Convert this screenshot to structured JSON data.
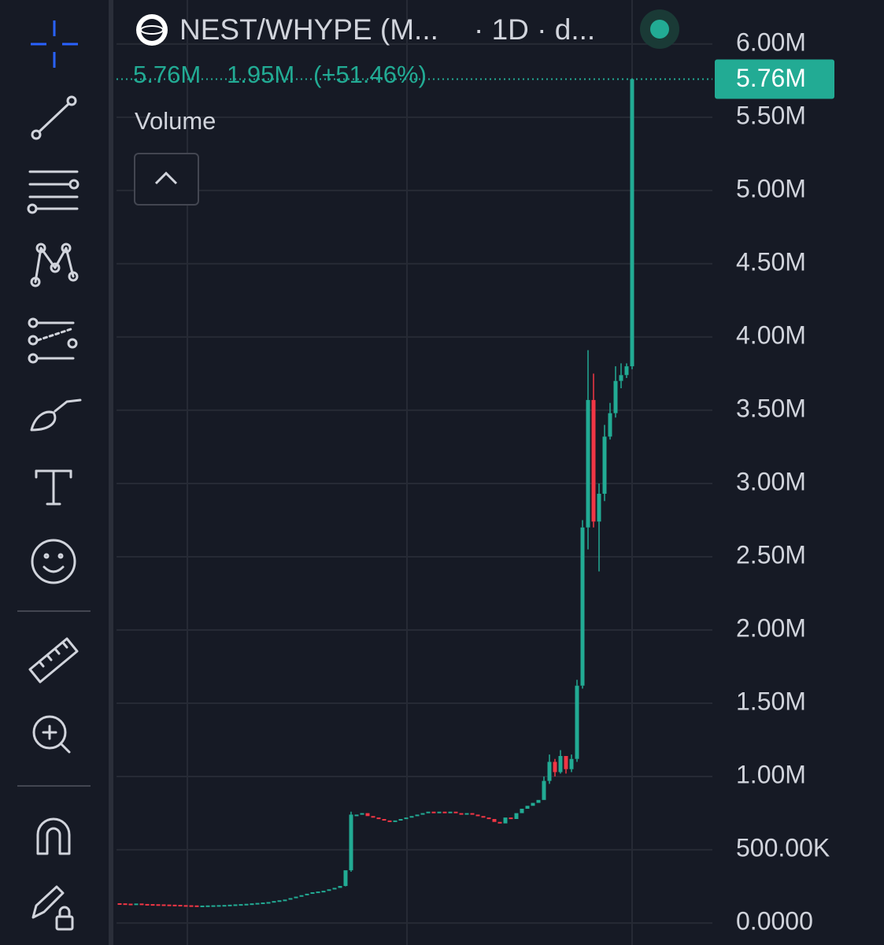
{
  "chart_data": {
    "type": "candlestick",
    "title": "NEST/WHYPE (M...",
    "interval_text": "· 1D · d...",
    "legend": [
      "5.76M",
      "1.95M",
      "(+51.46%)"
    ],
    "indicator_label": "Volume",
    "last_price_label": "5.76M",
    "last_price": 5.76,
    "up_color": "#22ab94",
    "down_color": "#f23645",
    "grid": true,
    "ylim": [
      -0.15,
      6.3
    ],
    "yticks": [
      {
        "value": 6,
        "label": "6.00M"
      },
      {
        "value": 5.5,
        "label": "5.50M"
      },
      {
        "value": 5,
        "label": "5.00M"
      },
      {
        "value": 4.5,
        "label": "4.50M"
      },
      {
        "value": 4,
        "label": "4.00M"
      },
      {
        "value": 3.5,
        "label": "3.50M"
      },
      {
        "value": 3,
        "label": "3.00M"
      },
      {
        "value": 2.5,
        "label": "2.50M"
      },
      {
        "value": 2,
        "label": "2.00M"
      },
      {
        "value": 1.5,
        "label": "1.50M"
      },
      {
        "value": 1,
        "label": "1.00M"
      },
      {
        "value": 0.5,
        "label": "500.00K"
      },
      {
        "value": 0,
        "label": "0.0000"
      }
    ],
    "open": [
      0.135,
      0.134,
      0.132,
      0.131,
      0.133,
      0.13,
      0.129,
      0.128,
      0.127,
      0.126,
      0.125,
      0.124,
      0.122,
      0.121,
      0.12,
      0.119,
      0.119,
      0.12,
      0.121,
      0.122,
      0.123,
      0.125,
      0.127,
      0.129,
      0.131,
      0.134,
      0.137,
      0.14,
      0.143,
      0.15,
      0.155,
      0.16,
      0.17,
      0.18,
      0.19,
      0.2,
      0.21,
      0.215,
      0.22,
      0.23,
      0.24,
      0.253,
      0.36,
      0.74,
      0.74,
      0.75,
      0.73,
      0.72,
      0.71,
      0.7,
      0.69,
      0.7,
      0.71,
      0.72,
      0.73,
      0.74,
      0.75,
      0.76,
      0.75,
      0.76,
      0.75,
      0.76,
      0.75,
      0.74,
      0.75,
      0.74,
      0.73,
      0.72,
      0.71,
      0.69,
      0.68,
      0.72,
      0.71,
      0.75,
      0.78,
      0.8,
      0.82,
      0.84,
      0.97,
      1.1,
      1.03,
      1.14,
      1.05,
      1.12,
      1.62,
      2.7,
      3.57,
      2.74,
      2.93,
      3.32,
      3.48,
      3.7,
      3.74,
      3.8
    ],
    "high": [
      null,
      null,
      null,
      null,
      null,
      null,
      null,
      null,
      null,
      null,
      null,
      null,
      null,
      null,
      null,
      null,
      null,
      null,
      null,
      null,
      null,
      null,
      null,
      null,
      null,
      null,
      null,
      null,
      null,
      null,
      null,
      null,
      null,
      null,
      null,
      null,
      null,
      null,
      null,
      null,
      null,
      null,
      0.76,
      null,
      null,
      null,
      null,
      null,
      null,
      null,
      null,
      null,
      null,
      null,
      null,
      null,
      null,
      null,
      null,
      null,
      null,
      null,
      null,
      null,
      null,
      null,
      null,
      null,
      null,
      null,
      null,
      null,
      null,
      null,
      null,
      null,
      null,
      1.0,
      1.15,
      1.12,
      1.18,
      1.14,
      1.15,
      1.66,
      2.75,
      3.91,
      3.75,
      3.0,
      3.4,
      3.55,
      3.8,
      3.82,
      3.82,
      5.76
    ],
    "low": [
      null,
      null,
      null,
      null,
      null,
      null,
      null,
      null,
      null,
      null,
      null,
      null,
      null,
      null,
      null,
      null,
      null,
      null,
      null,
      null,
      null,
      null,
      null,
      null,
      null,
      null,
      null,
      null,
      null,
      null,
      null,
      null,
      null,
      null,
      null,
      null,
      null,
      null,
      null,
      null,
      null,
      0.25,
      0.35,
      null,
      null,
      null,
      null,
      null,
      null,
      null,
      null,
      null,
      null,
      null,
      null,
      null,
      null,
      null,
      null,
      null,
      null,
      null,
      null,
      null,
      null,
      null,
      null,
      null,
      null,
      null,
      null,
      null,
      null,
      null,
      null,
      null,
      null,
      0.84,
      0.95,
      1.0,
      1.02,
      1.02,
      1.03,
      1.1,
      1.6,
      2.55,
      2.7,
      2.4,
      2.88,
      3.3,
      3.45,
      3.65,
      3.72,
      3.78
    ],
    "close": [
      0.134,
      0.132,
      0.131,
      0.133,
      0.13,
      0.129,
      0.128,
      0.127,
      0.126,
      0.125,
      0.124,
      0.122,
      0.121,
      0.12,
      0.119,
      0.119,
      0.12,
      0.121,
      0.122,
      0.123,
      0.125,
      0.127,
      0.129,
      0.131,
      0.134,
      0.137,
      0.14,
      0.143,
      0.15,
      0.155,
      0.16,
      0.17,
      0.18,
      0.19,
      0.2,
      0.21,
      0.215,
      0.22,
      0.23,
      0.24,
      0.253,
      0.36,
      0.74,
      0.74,
      0.75,
      0.73,
      0.72,
      0.71,
      0.7,
      0.69,
      0.7,
      0.71,
      0.72,
      0.73,
      0.74,
      0.75,
      0.76,
      0.75,
      0.76,
      0.75,
      0.76,
      0.75,
      0.74,
      0.75,
      0.74,
      0.73,
      0.72,
      0.71,
      0.69,
      0.68,
      0.72,
      0.71,
      0.75,
      0.78,
      0.8,
      0.82,
      0.84,
      0.97,
      1.1,
      1.03,
      1.14,
      1.05,
      1.12,
      1.62,
      2.7,
      3.57,
      2.74,
      2.93,
      3.32,
      3.48,
      3.7,
      3.74,
      3.8,
      5.76
    ]
  }
}
